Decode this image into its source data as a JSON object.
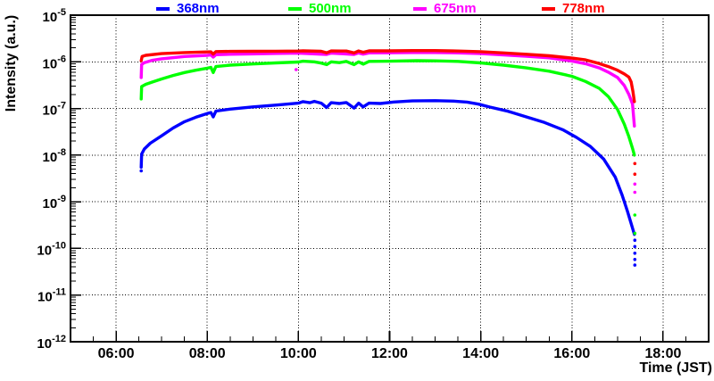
{
  "figure": {
    "background": "#ffffff",
    "frame_color": "#000000",
    "grid_color": "#000000",
    "axes": {
      "x": {
        "label": "Time (JST)",
        "major_hours": [
          6,
          8,
          10,
          12,
          14,
          16,
          18
        ],
        "major_labels": [
          "06:00",
          "08:00",
          "10:00",
          "12:00",
          "14:00",
          "16:00",
          "18:00"
        ],
        "minor_step_hours": 0.5
      },
      "y": {
        "label": "Intensity (a.u.)",
        "tick_labels": [
          "10-5",
          "10-6",
          "10-7",
          "10-8",
          "10-9",
          "10-10",
          "10-11",
          "10-12"
        ],
        "scale": "log"
      }
    }
  },
  "chart_data": {
    "type": "line",
    "title": "",
    "xlabel": "Time (JST)",
    "ylabel": "Intensity (a.u.)",
    "x_unit": "hours_JST",
    "xlim": [
      5,
      19
    ],
    "ylim_log10": [
      -12,
      -5
    ],
    "grid": "dotted-major-both-axes",
    "legend_position": "top",
    "series": [
      {
        "name": "368nm",
        "color": "#0000ff",
        "points": [
          [
            6.55,
            5.5e-09
          ],
          [
            6.56,
            1.05e-08
          ],
          [
            6.62,
            1.35e-08
          ],
          [
            6.75,
            1.8e-08
          ],
          [
            7.0,
            2.6e-08
          ],
          [
            7.25,
            3.8e-08
          ],
          [
            7.5,
            5.2e-08
          ],
          [
            7.75,
            6.5e-08
          ],
          [
            8.0,
            7.8e-08
          ],
          [
            8.08,
            8.2e-08
          ],
          [
            8.13,
            6.6e-08
          ],
          [
            8.19,
            8.8e-08
          ],
          [
            8.5,
            9.7e-08
          ],
          [
            9.0,
            1.08e-07
          ],
          [
            9.5,
            1.18e-07
          ],
          [
            10.0,
            1.3e-07
          ],
          [
            10.1,
            1.4e-07
          ],
          [
            10.25,
            1.33e-07
          ],
          [
            10.35,
            1.42e-07
          ],
          [
            10.5,
            1.3e-07
          ],
          [
            10.62,
            1.05e-07
          ],
          [
            10.72,
            1.33e-07
          ],
          [
            10.9,
            1.28e-07
          ],
          [
            11.05,
            1.34e-07
          ],
          [
            11.22,
            1.02e-07
          ],
          [
            11.32,
            1.3e-07
          ],
          [
            11.42,
            1.08e-07
          ],
          [
            11.55,
            1.3e-07
          ],
          [
            11.8,
            1.28e-07
          ],
          [
            12.1,
            1.38e-07
          ],
          [
            12.5,
            1.45e-07
          ],
          [
            13.0,
            1.47e-07
          ],
          [
            13.4,
            1.44e-07
          ],
          [
            13.7,
            1.37e-07
          ],
          [
            13.95,
            1.24e-07
          ],
          [
            14.2,
            1.07e-07
          ],
          [
            14.6,
            8.7e-08
          ],
          [
            15.0,
            6.6e-08
          ],
          [
            15.4,
            5e-08
          ],
          [
            15.8,
            3.5e-08
          ],
          [
            16.1,
            2.4e-08
          ],
          [
            16.4,
            1.55e-08
          ],
          [
            16.7,
            8.2e-09
          ],
          [
            16.95,
            3.4e-09
          ],
          [
            17.1,
            1.4e-09
          ],
          [
            17.22,
            6.2e-10
          ],
          [
            17.3,
            3.4e-10
          ],
          [
            17.37,
            2e-10
          ]
        ],
        "scatter": [
          [
            6.55,
            4.6e-09
          ],
          [
            17.38,
            1.5e-10
          ],
          [
            17.38,
            1.1e-10
          ],
          [
            17.38,
            7.9e-11
          ],
          [
            17.38,
            5.8e-11
          ],
          [
            17.38,
            4.4e-11
          ]
        ]
      },
      {
        "name": "500nm",
        "color": "#00ff00",
        "points": [
          [
            6.55,
            1.6e-07
          ],
          [
            6.56,
            2.95e-07
          ],
          [
            6.65,
            3.3e-07
          ],
          [
            6.8,
            3.7e-07
          ],
          [
            7.0,
            4.3e-07
          ],
          [
            7.25,
            5.1e-07
          ],
          [
            7.5,
            5.9e-07
          ],
          [
            7.75,
            6.6e-07
          ],
          [
            8.0,
            7.3e-07
          ],
          [
            8.08,
            7.6e-07
          ],
          [
            8.13,
            5.9e-07
          ],
          [
            8.19,
            7.9e-07
          ],
          [
            8.5,
            8.5e-07
          ],
          [
            9.0,
            9e-07
          ],
          [
            9.5,
            9.5e-07
          ],
          [
            10.0,
            9.9e-07
          ],
          [
            10.1,
            1.03e-06
          ],
          [
            10.35,
            1e-06
          ],
          [
            10.5,
            9.4e-07
          ],
          [
            10.62,
            8.7e-07
          ],
          [
            10.72,
            1e-06
          ],
          [
            10.9,
            9.6e-07
          ],
          [
            11.05,
            1.02e-06
          ],
          [
            11.22,
            8.7e-07
          ],
          [
            11.32,
            1e-06
          ],
          [
            11.42,
            8.9e-07
          ],
          [
            11.55,
            1.02e-06
          ],
          [
            12.0,
            1.03e-06
          ],
          [
            12.6,
            1.06e-06
          ],
          [
            13.0,
            1.05e-06
          ],
          [
            13.5,
            1.02e-06
          ],
          [
            14.0,
            9.5e-07
          ],
          [
            14.5,
            8.5e-07
          ],
          [
            15.0,
            7.4e-07
          ],
          [
            15.5,
            6.3e-07
          ],
          [
            16.0,
            4.9e-07
          ],
          [
            16.3,
            3.8e-07
          ],
          [
            16.6,
            2.7e-07
          ],
          [
            16.8,
            1.8e-07
          ],
          [
            17.0,
            9.5e-08
          ],
          [
            17.15,
            4.6e-08
          ],
          [
            17.25,
            2.5e-08
          ],
          [
            17.33,
            1.4e-08
          ],
          [
            17.37,
            1e-08
          ]
        ],
        "scatter": [
          [
            17.38,
            5.2e-10
          ],
          [
            17.38,
            2.1e-10
          ]
        ]
      },
      {
        "name": "675nm",
        "color": "#ff00ff",
        "points": [
          [
            6.55,
            4.6e-07
          ],
          [
            6.56,
            8.8e-07
          ],
          [
            6.62,
            9.6e-07
          ],
          [
            6.8,
            1.08e-06
          ],
          [
            7.0,
            1.16e-06
          ],
          [
            7.5,
            1.3e-06
          ],
          [
            8.0,
            1.38e-06
          ],
          [
            8.08,
            1.4e-06
          ],
          [
            8.13,
            1.26e-06
          ],
          [
            8.19,
            1.42e-06
          ],
          [
            8.5,
            1.45e-06
          ],
          [
            9.0,
            1.48e-06
          ],
          [
            9.5,
            1.51e-06
          ],
          [
            10.0,
            1.53e-06
          ],
          [
            10.62,
            1.44e-06
          ],
          [
            10.72,
            1.54e-06
          ],
          [
            11.22,
            1.44e-06
          ],
          [
            11.32,
            1.55e-06
          ],
          [
            11.42,
            1.46e-06
          ],
          [
            11.55,
            1.55e-06
          ],
          [
            12.0,
            1.56e-06
          ],
          [
            12.5,
            1.58e-06
          ],
          [
            13.0,
            1.58e-06
          ],
          [
            13.5,
            1.55e-06
          ],
          [
            14.0,
            1.5e-06
          ],
          [
            14.5,
            1.4e-06
          ],
          [
            15.0,
            1.32e-06
          ],
          [
            15.5,
            1.22e-06
          ],
          [
            16.0,
            1.04e-06
          ],
          [
            16.3,
            9.1e-07
          ],
          [
            16.6,
            7.4e-07
          ],
          [
            16.8,
            6e-07
          ],
          [
            17.0,
            4.6e-07
          ],
          [
            17.15,
            3.1e-07
          ],
          [
            17.25,
            2e-07
          ],
          [
            17.33,
            1.25e-07
          ],
          [
            17.37,
            4.2e-08
          ]
        ],
        "scatter": [
          [
            9.95,
            6.8e-07
          ],
          [
            17.38,
            2.4e-09
          ],
          [
            17.38,
            1.6e-09
          ]
        ]
      },
      {
        "name": "778nm",
        "color": "#ff0000",
        "points": [
          [
            6.55,
            1.05e-06
          ],
          [
            6.57,
            1.3e-06
          ],
          [
            6.65,
            1.38e-06
          ],
          [
            7.0,
            1.5e-06
          ],
          [
            7.5,
            1.58e-06
          ],
          [
            8.0,
            1.63e-06
          ],
          [
            8.08,
            1.64e-06
          ],
          [
            8.13,
            1.46e-06
          ],
          [
            8.19,
            1.66e-06
          ],
          [
            8.5,
            1.67e-06
          ],
          [
            9.0,
            1.68e-06
          ],
          [
            9.5,
            1.69e-06
          ],
          [
            10.0,
            1.7e-06
          ],
          [
            10.1,
            1.72e-06
          ],
          [
            10.5,
            1.68e-06
          ],
          [
            10.62,
            1.56e-06
          ],
          [
            10.72,
            1.71e-06
          ],
          [
            11.05,
            1.7e-06
          ],
          [
            11.22,
            1.55e-06
          ],
          [
            11.32,
            1.71e-06
          ],
          [
            11.42,
            1.6e-06
          ],
          [
            11.55,
            1.72e-06
          ],
          [
            12.0,
            1.72e-06
          ],
          [
            12.5,
            1.74e-06
          ],
          [
            13.0,
            1.74e-06
          ],
          [
            13.5,
            1.7e-06
          ],
          [
            14.0,
            1.65e-06
          ],
          [
            14.5,
            1.55e-06
          ],
          [
            15.0,
            1.45e-06
          ],
          [
            15.5,
            1.35e-06
          ],
          [
            16.0,
            1.2e-06
          ],
          [
            16.3,
            1.1e-06
          ],
          [
            16.6,
            9.2e-07
          ],
          [
            16.8,
            7.9e-07
          ],
          [
            17.0,
            6.6e-07
          ],
          [
            17.15,
            5.5e-07
          ],
          [
            17.25,
            4.7e-07
          ],
          [
            17.3,
            3.7e-07
          ],
          [
            17.34,
            2.3e-07
          ],
          [
            17.37,
            1.4e-07
          ]
        ],
        "scatter": [
          [
            17.38,
            6.6e-09
          ],
          [
            17.38,
            3.9e-09
          ]
        ]
      }
    ]
  }
}
